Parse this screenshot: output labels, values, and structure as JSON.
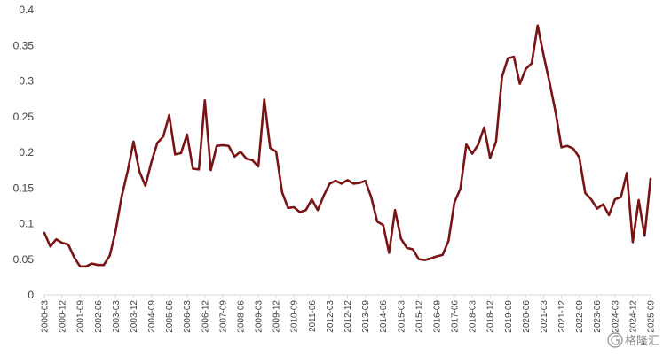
{
  "chart_data": {
    "type": "line",
    "title": "",
    "xlabel": "",
    "ylabel": "",
    "ylim": [
      0,
      0.4
    ],
    "y_ticks": [
      "0",
      "0.05",
      "0.1",
      "0.15",
      "0.2",
      "0.25",
      "0.3",
      "0.35",
      "0.4"
    ],
    "x_tick_labels": [
      "2000-03",
      "2000-12",
      "2001-09",
      "2002-06",
      "2003-03",
      "2003-12",
      "2004-09",
      "2005-06",
      "2006-03",
      "2006-12",
      "2007-09",
      "2008-06",
      "2009-03",
      "2009-12",
      "2010-09",
      "2011-06",
      "2012-03",
      "2012-12",
      "2013-09",
      "2014-06",
      "2015-03",
      "2015-12",
      "2016-09",
      "2017-06",
      "2018-03",
      "2018-12",
      "2019-09",
      "2020-06",
      "2021-03",
      "2021-12",
      "2022-09",
      "2023-06",
      "2024-03",
      "2024-12",
      "2025-09"
    ],
    "grid": false,
    "legend": "none",
    "series": [
      {
        "color": "#7a1414",
        "x": [
          "2000-03",
          "2000-06",
          "2000-09",
          "2000-12",
          "2001-03",
          "2001-06",
          "2001-09",
          "2001-12",
          "2002-03",
          "2002-06",
          "2002-09",
          "2002-12",
          "2003-03",
          "2003-06",
          "2003-09",
          "2003-12",
          "2004-03",
          "2004-06",
          "2004-09",
          "2004-12",
          "2005-03",
          "2005-06",
          "2005-09",
          "2005-12",
          "2006-03",
          "2006-06",
          "2006-09",
          "2006-12",
          "2007-03",
          "2007-06",
          "2007-09",
          "2007-12",
          "2008-03",
          "2008-06",
          "2008-09",
          "2008-12",
          "2009-03",
          "2009-06",
          "2009-09",
          "2009-12",
          "2010-03",
          "2010-06",
          "2010-09",
          "2010-12",
          "2011-03",
          "2011-06",
          "2011-09",
          "2011-12",
          "2012-03",
          "2012-06",
          "2012-09",
          "2012-12",
          "2013-03",
          "2013-06",
          "2013-09",
          "2013-12",
          "2014-03",
          "2014-06",
          "2014-09",
          "2014-12",
          "2015-03",
          "2015-06",
          "2015-09",
          "2015-12",
          "2016-03",
          "2016-06",
          "2016-09",
          "2016-12",
          "2017-03",
          "2017-06",
          "2017-09",
          "2017-12",
          "2018-03",
          "2018-06",
          "2018-09",
          "2018-12",
          "2019-03",
          "2019-06",
          "2019-09",
          "2019-12",
          "2020-03",
          "2020-06",
          "2020-09",
          "2020-12",
          "2021-03",
          "2021-06",
          "2021-09",
          "2021-12",
          "2022-03",
          "2022-06",
          "2022-09",
          "2022-12",
          "2023-03",
          "2023-06",
          "2023-09",
          "2023-12",
          "2024-03",
          "2024-06",
          "2024-09",
          "2024-12",
          "2025-03",
          "2025-06",
          "2025-09"
        ],
        "values": [
          0.087,
          0.068,
          0.078,
          0.073,
          0.071,
          0.053,
          0.04,
          0.04,
          0.044,
          0.042,
          0.042,
          0.055,
          0.09,
          0.138,
          0.173,
          0.215,
          0.173,
          0.153,
          0.186,
          0.213,
          0.222,
          0.252,
          0.197,
          0.199,
          0.225,
          0.177,
          0.176,
          0.273,
          0.175,
          0.209,
          0.21,
          0.209,
          0.194,
          0.201,
          0.191,
          0.189,
          0.18,
          0.274,
          0.206,
          0.201,
          0.144,
          0.122,
          0.123,
          0.116,
          0.119,
          0.134,
          0.119,
          0.139,
          0.156,
          0.16,
          0.156,
          0.161,
          0.156,
          0.157,
          0.16,
          0.137,
          0.103,
          0.098,
          0.059,
          0.119,
          0.079,
          0.066,
          0.064,
          0.05,
          0.049,
          0.051,
          0.054,
          0.056,
          0.076,
          0.13,
          0.149,
          0.211,
          0.198,
          0.211,
          0.235,
          0.192,
          0.215,
          0.306,
          0.332,
          0.334,
          0.296,
          0.317,
          0.325,
          0.378,
          0.336,
          0.298,
          0.257,
          0.207,
          0.209,
          0.205,
          0.193,
          0.143,
          0.134,
          0.121,
          0.127,
          0.112,
          0.134,
          0.137,
          0.171,
          0.074,
          0.133,
          0.083,
          0.163
        ]
      }
    ]
  },
  "watermark": {
    "text": "格隆汇",
    "icon": "glh-logo-icon"
  }
}
